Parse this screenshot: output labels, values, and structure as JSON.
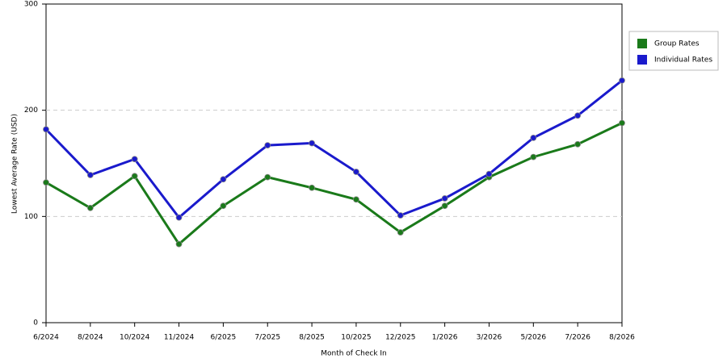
{
  "chart_data": {
    "type": "line",
    "x_label": "Month of Check In",
    "y_label": "Lowest Average Rate (USD)",
    "categories": [
      "6/2024",
      "8/2024",
      "10/2024",
      "11/2024",
      "6/2025",
      "7/2025",
      "8/2025",
      "10/2025",
      "12/2025",
      "1/2026",
      "3/2026",
      "5/2026",
      "7/2026",
      "8/2026"
    ],
    "series": [
      {
        "name": "Group Rates",
        "color": "#1a7a1a",
        "values": [
          132,
          108,
          138,
          74,
          110,
          137,
          127,
          116,
          85,
          110,
          137,
          156,
          168,
          188
        ]
      },
      {
        "name": "Individual Rates",
        "color": "#1a1acc",
        "values": [
          182,
          139,
          154,
          99,
          135,
          167,
          169,
          142,
          101,
          117,
          140,
          174,
          195,
          228
        ]
      }
    ],
    "ylim": [
      0,
      300
    ],
    "yticks": [
      0,
      100,
      200,
      300
    ],
    "grid": true,
    "legend": "right"
  }
}
